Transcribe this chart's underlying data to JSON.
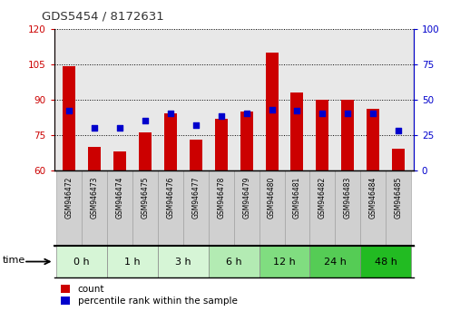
{
  "title": "GDS5454 / 8172631",
  "samples": [
    "GSM946472",
    "GSM946473",
    "GSM946474",
    "GSM946475",
    "GSM946476",
    "GSM946477",
    "GSM946478",
    "GSM946479",
    "GSM946480",
    "GSM946481",
    "GSM946482",
    "GSM946483",
    "GSM946484",
    "GSM946485"
  ],
  "counts": [
    104,
    70,
    68,
    76,
    84,
    73,
    82,
    85,
    110,
    93,
    90,
    90,
    86,
    69
  ],
  "percentile_ranks": [
    42,
    30,
    30,
    35,
    40,
    32,
    38,
    40,
    43,
    42,
    40,
    40,
    40,
    28
  ],
  "time_groups": [
    {
      "label": "0 h",
      "start": 0,
      "end": 1,
      "color": "#d6f5d6"
    },
    {
      "label": "1 h",
      "start": 2,
      "end": 3,
      "color": "#d6f5d6"
    },
    {
      "label": "3 h",
      "start": 4,
      "end": 5,
      "color": "#d6f5d6"
    },
    {
      "label": "6 h",
      "start": 6,
      "end": 7,
      "color": "#b3ebb3"
    },
    {
      "label": "12 h",
      "start": 8,
      "end": 9,
      "color": "#80dd80"
    },
    {
      "label": "24 h",
      "start": 10,
      "end": 11,
      "color": "#55cc55"
    },
    {
      "label": "48 h",
      "start": 12,
      "end": 13,
      "color": "#22bb22"
    }
  ],
  "ylim_left": [
    60,
    120
  ],
  "ylim_right": [
    0,
    100
  ],
  "yticks_left": [
    60,
    75,
    90,
    105,
    120
  ],
  "yticks_right": [
    0,
    25,
    50,
    75,
    100
  ],
  "bar_color": "#cc0000",
  "dot_color": "#0000cc",
  "bg_color": "#ffffff",
  "plot_bg": "#e8e8e8",
  "label_color_left": "#cc0000",
  "label_color_right": "#0000cc",
  "sample_box_color": "#d0d0d0",
  "legend_count_label": "count",
  "legend_pct_label": "percentile rank within the sample"
}
